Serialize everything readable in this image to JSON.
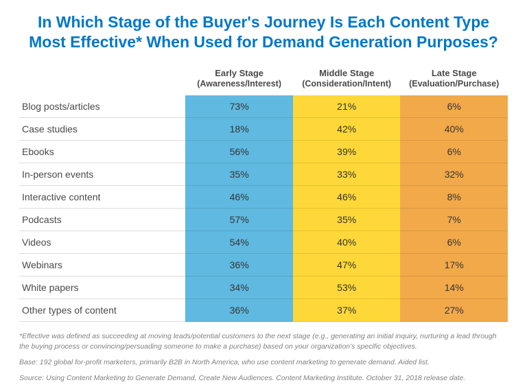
{
  "title": "In Which Stage of the Buyer's Journey Is Each Content Type Most Effective* When Used for Demand Generation Purposes?",
  "table": {
    "type": "table",
    "columns": [
      {
        "label": "Early Stage",
        "sublabel": "(Awareness/Interest)",
        "bg_color": "#5fb9e0"
      },
      {
        "label": "Middle Stage",
        "sublabel": "(Consideration/Intent)",
        "bg_color": "#fdd838"
      },
      {
        "label": "Late Stage",
        "sublabel": "(Evaluation/Purchase)",
        "bg_color": "#f2a94a"
      }
    ],
    "rows": [
      {
        "label": "Blog posts/articles",
        "values": [
          "73%",
          "21%",
          "6%"
        ]
      },
      {
        "label": "Case studies",
        "values": [
          "18%",
          "42%",
          "40%"
        ]
      },
      {
        "label": "Ebooks",
        "values": [
          "56%",
          "39%",
          "6%"
        ]
      },
      {
        "label": "In-person events",
        "values": [
          "35%",
          "33%",
          "32%"
        ]
      },
      {
        "label": "Interactive content",
        "values": [
          "46%",
          "46%",
          "8%"
        ]
      },
      {
        "label": "Podcasts",
        "values": [
          "57%",
          "35%",
          "7%"
        ]
      },
      {
        "label": "Videos",
        "values": [
          "54%",
          "40%",
          "6%"
        ]
      },
      {
        "label": "Webinars",
        "values": [
          "36%",
          "47%",
          "17%"
        ]
      },
      {
        "label": "White papers",
        "values": [
          "34%",
          "53%",
          "14%"
        ]
      },
      {
        "label": "Other types of content",
        "values": [
          "36%",
          "37%",
          "27%"
        ]
      }
    ],
    "row_border_color": "#dcdcdc",
    "header_text_color": "#4a4a4a",
    "body_text_color": "#333333",
    "label_fontsize": 14,
    "cell_fontsize": 14,
    "header_fontsize": 13
  },
  "footnotes": {
    "definition": "*Effective was defined as succeeding at moving leads/potential customers to the next stage (e.g., generating an initial inquiry, nurturing a lead through the buying process or convincing/persuading someone to make a purchase) based on your organization's specific objectives.",
    "base": "Base: 192 global for-profit marketers, primarily B2B in North America, who use content marketing to generate demand. Aided list.",
    "source": "Source: Using Content Marketing to Generate Demand, Create New Audiences. Content Marketing Institute. October 31, 2018 release date."
  },
  "styles": {
    "title_color": "#0077c8",
    "title_fontsize": 23,
    "footnote_color": "#808080",
    "footnote_fontsize": 10.5,
    "background_color": "#ffffff"
  }
}
